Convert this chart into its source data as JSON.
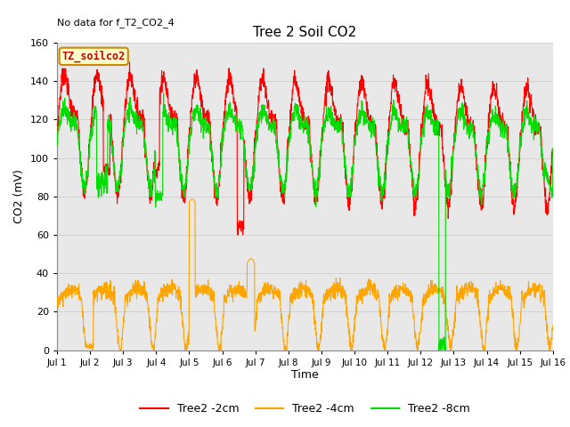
{
  "title": "Tree 2 Soil CO2",
  "top_left_note": "No data for f_T2_CO2_4",
  "ylabel": "CO2 (mV)",
  "xlabel": "Time",
  "box_label": "TZ_soilco2",
  "ylim": [
    0,
    160
  ],
  "xlim": [
    0,
    15
  ],
  "xtick_labels": [
    "Jul 1",
    "Jul 2",
    "Jul 3",
    "Jul 4",
    "Jul 5",
    "Jul 6",
    "Jul 7",
    "Jul 8",
    "Jul 9",
    "Jul 10",
    "Jul 11",
    "Jul 12",
    "Jul 13",
    "Jul 14",
    "Jul 15",
    "Jul 16"
  ],
  "ytick_vals": [
    0,
    20,
    40,
    60,
    80,
    100,
    120,
    140,
    160
  ],
  "grid_color": "#d0d0d0",
  "bg_color": "#e8e8e8",
  "legend": [
    {
      "label": "Tree2 -2cm",
      "color": "#ff0000"
    },
    {
      "label": "Tree2 -4cm",
      "color": "#ffa500"
    },
    {
      "label": "Tree2 -8cm",
      "color": "#00dd00"
    }
  ],
  "line_width": 0.8,
  "n_points": 2160
}
